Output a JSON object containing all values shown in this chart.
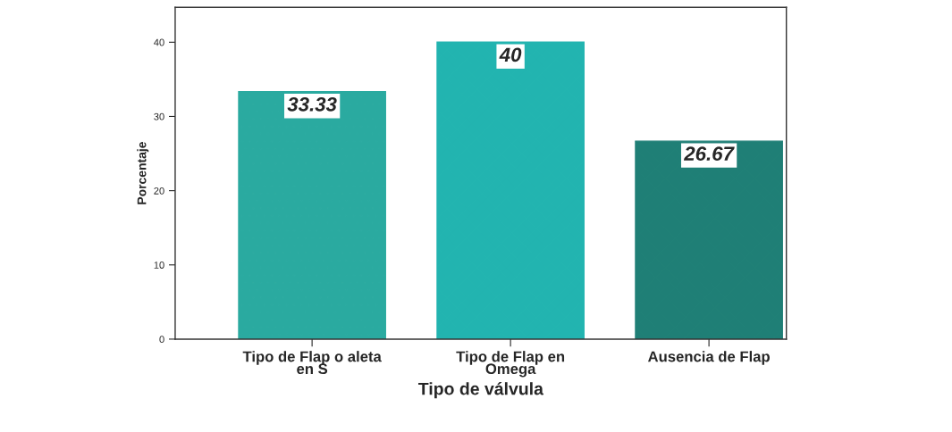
{
  "chart_data": {
    "type": "bar",
    "xlabel": "Tipo de válvula",
    "ylabel": "Porcentaje",
    "categories": [
      "Tipo de Flap o aleta\nen S",
      "Tipo de Flap en\nOmega",
      "Ausencia de Flap"
    ],
    "values": [
      33.33,
      40,
      26.67
    ],
    "colors": [
      "#2aaaa0",
      "#22b4b0",
      "#1f7f76"
    ],
    "ylim": [
      0,
      44.7
    ],
    "yticks": [
      0,
      10,
      20,
      30,
      40
    ],
    "grid": false,
    "data_labels": true
  }
}
